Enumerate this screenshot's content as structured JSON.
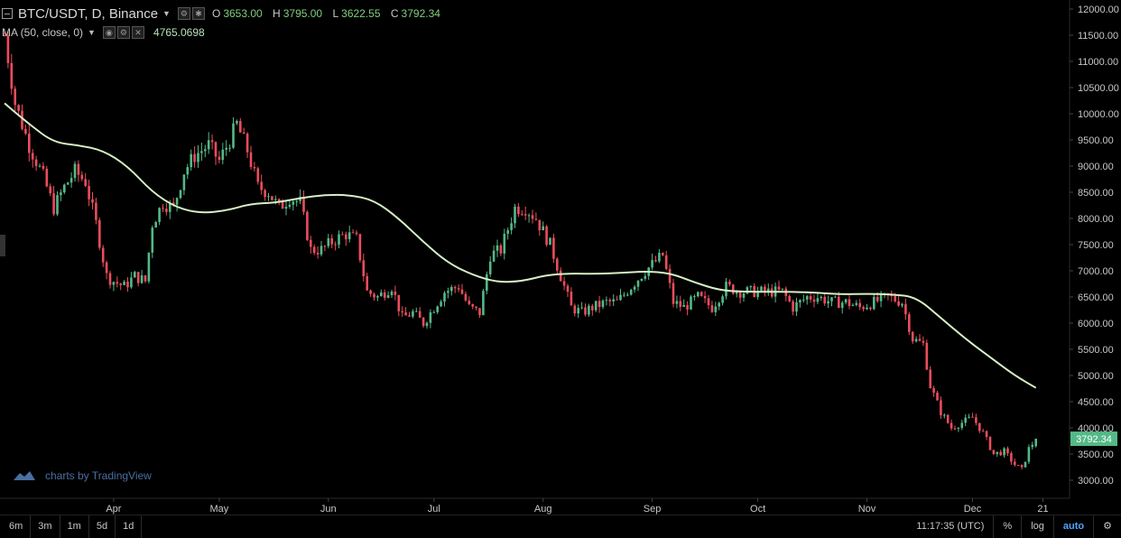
{
  "header": {
    "symbol": "BTC/USDT, D, Binance",
    "ohlc": [
      {
        "k": "O",
        "v": "3653.00"
      },
      {
        "k": "H",
        "v": "3795.00"
      },
      {
        "k": "L",
        "v": "3622.55"
      },
      {
        "k": "C",
        "v": "3792.34"
      }
    ],
    "indicator_label": "MA (50, close, 0)",
    "indicator_value": "4765.0698"
  },
  "watermark": "charts by TradingView",
  "bottom_bar": {
    "ranges": [
      "6m",
      "3m",
      "1m",
      "5d",
      "1d"
    ],
    "time": "11:17:35 (UTC)",
    "percent": "%",
    "log": "log",
    "auto": "auto"
  },
  "colors": {
    "up": "#53b987",
    "down": "#eb4d5c",
    "ma": "#d6f0c4",
    "axis_text": "#c8c8c8",
    "price_tag": "#53b987"
  },
  "chart_data": {
    "type": "candlestick",
    "title": "",
    "x_ticks": [
      "Apr",
      "May",
      "Jun",
      "Jul",
      "Aug",
      "Sep",
      "Oct",
      "Nov",
      "Dec",
      "21"
    ],
    "y_ticks": [
      "3000.00",
      "3500.00",
      "4000.00",
      "4500.00",
      "5000.00",
      "5500.00",
      "6000.00",
      "6500.00",
      "7000.00",
      "7500.00",
      "8000.00",
      "8500.00",
      "9000.00",
      "9500.00",
      "10000.00",
      "10500.00",
      "11000.00",
      "11500.00",
      "12000.00"
    ],
    "ylim": [
      2850,
      12050
    ],
    "last_price": "3792.34",
    "close_path": [
      [
        "2018-03-01",
        11500
      ],
      [
        "2018-03-04",
        10200
      ],
      [
        "2018-03-08",
        9400
      ],
      [
        "2018-03-12",
        8800
      ],
      [
        "2018-03-15",
        8200
      ],
      [
        "2018-03-18",
        8600
      ],
      [
        "2018-03-21",
        8900
      ],
      [
        "2018-03-24",
        8700
      ],
      [
        "2018-03-27",
        7900
      ],
      [
        "2018-03-30",
        6900
      ],
      [
        "2018-04-01",
        6800
      ],
      [
        "2018-04-04",
        6700
      ],
      [
        "2018-04-07",
        6900
      ],
      [
        "2018-04-10",
        6800
      ],
      [
        "2018-04-12",
        7900
      ],
      [
        "2018-04-15",
        8300
      ],
      [
        "2018-04-18",
        8200
      ],
      [
        "2018-04-21",
        8900
      ],
      [
        "2018-04-24",
        9200
      ],
      [
        "2018-04-26",
        9300
      ],
      [
        "2018-04-28",
        9400
      ],
      [
        "2018-05-01",
        9100
      ],
      [
        "2018-05-04",
        9500
      ],
      [
        "2018-05-06",
        9800
      ],
      [
        "2018-05-09",
        9300
      ],
      [
        "2018-05-12",
        8600
      ],
      [
        "2018-05-15",
        8500
      ],
      [
        "2018-05-18",
        8200
      ],
      [
        "2018-05-21",
        8400
      ],
      [
        "2018-05-24",
        8300
      ],
      [
        "2018-05-27",
        7400
      ],
      [
        "2018-05-30",
        7400
      ],
      [
        "2018-06-03",
        7600
      ],
      [
        "2018-06-06",
        7700
      ],
      [
        "2018-06-09",
        7600
      ],
      [
        "2018-06-12",
        6600
      ],
      [
        "2018-06-15",
        6500
      ],
      [
        "2018-06-19",
        6700
      ],
      [
        "2018-06-22",
        6100
      ],
      [
        "2018-06-25",
        6200
      ],
      [
        "2018-06-28",
        6000
      ],
      [
        "2018-07-01",
        6300
      ],
      [
        "2018-07-04",
        6600
      ],
      [
        "2018-07-08",
        6700
      ],
      [
        "2018-07-11",
        6300
      ],
      [
        "2018-07-14",
        6200
      ],
      [
        "2018-07-17",
        7300
      ],
      [
        "2018-07-20",
        7400
      ],
      [
        "2018-07-24",
        8200
      ],
      [
        "2018-07-27",
        8200
      ],
      [
        "2018-07-30",
        8000
      ],
      [
        "2018-08-03",
        7500
      ],
      [
        "2018-08-06",
        6900
      ],
      [
        "2018-08-09",
        6300
      ],
      [
        "2018-08-12",
        6200
      ],
      [
        "2018-08-15",
        6300
      ],
      [
        "2018-08-19",
        6400
      ],
      [
        "2018-08-22",
        6400
      ],
      [
        "2018-08-26",
        6700
      ],
      [
        "2018-08-30",
        7000
      ],
      [
        "2018-09-04",
        7300
      ],
      [
        "2018-09-07",
        6400
      ],
      [
        "2018-09-10",
        6300
      ],
      [
        "2018-09-14",
        6500
      ],
      [
        "2018-09-18",
        6300
      ],
      [
        "2018-09-22",
        6700
      ],
      [
        "2018-09-26",
        6600
      ],
      [
        "2018-09-30",
        6600
      ],
      [
        "2018-10-04",
        6600
      ],
      [
        "2018-10-08",
        6600
      ],
      [
        "2018-10-11",
        6300
      ],
      [
        "2018-10-15",
        6500
      ],
      [
        "2018-10-18",
        6500
      ],
      [
        "2018-10-22",
        6400
      ],
      [
        "2018-10-26",
        6400
      ],
      [
        "2018-10-30",
        6300
      ],
      [
        "2018-11-03",
        6400
      ],
      [
        "2018-11-07",
        6500
      ],
      [
        "2018-11-11",
        6400
      ],
      [
        "2018-11-14",
        5700
      ],
      [
        "2018-11-17",
        5600
      ],
      [
        "2018-11-19",
        4800
      ],
      [
        "2018-11-22",
        4300
      ],
      [
        "2018-11-25",
        4000
      ],
      [
        "2018-11-28",
        4100
      ],
      [
        "2018-12-01",
        4200
      ],
      [
        "2018-12-04",
        3900
      ],
      [
        "2018-12-07",
        3500
      ],
      [
        "2018-12-10",
        3550
      ],
      [
        "2018-12-13",
        3300
      ],
      [
        "2018-12-15",
        3200
      ],
      [
        "2018-12-17",
        3600
      ],
      [
        "2018-12-19",
        3792
      ]
    ],
    "ma_path": [
      [
        "2018-03-01",
        10200
      ],
      [
        "2018-03-08",
        9800
      ],
      [
        "2018-03-15",
        9450
      ],
      [
        "2018-03-22",
        9400
      ],
      [
        "2018-03-29",
        9300
      ],
      [
        "2018-04-05",
        9000
      ],
      [
        "2018-04-12",
        8500
      ],
      [
        "2018-04-19",
        8200
      ],
      [
        "2018-04-26",
        8100
      ],
      [
        "2018-05-03",
        8150
      ],
      [
        "2018-05-10",
        8280
      ],
      [
        "2018-05-17",
        8300
      ],
      [
        "2018-05-24",
        8390
      ],
      [
        "2018-05-31",
        8450
      ],
      [
        "2018-06-07",
        8450
      ],
      [
        "2018-06-14",
        8350
      ],
      [
        "2018-06-21",
        8000
      ],
      [
        "2018-06-28",
        7550
      ],
      [
        "2018-07-05",
        7150
      ],
      [
        "2018-07-12",
        6920
      ],
      [
        "2018-07-19",
        6780
      ],
      [
        "2018-07-26",
        6800
      ],
      [
        "2018-08-02",
        6920
      ],
      [
        "2018-08-09",
        6950
      ],
      [
        "2018-08-16",
        6940
      ],
      [
        "2018-08-23",
        6960
      ],
      [
        "2018-08-30",
        6990
      ],
      [
        "2018-09-06",
        6960
      ],
      [
        "2018-09-13",
        6780
      ],
      [
        "2018-09-20",
        6630
      ],
      [
        "2018-09-27",
        6600
      ],
      [
        "2018-10-04",
        6600
      ],
      [
        "2018-10-11",
        6600
      ],
      [
        "2018-10-18",
        6580
      ],
      [
        "2018-10-25",
        6550
      ],
      [
        "2018-11-01",
        6560
      ],
      [
        "2018-11-08",
        6550
      ],
      [
        "2018-11-15",
        6500
      ],
      [
        "2018-11-22",
        6100
      ],
      [
        "2018-11-29",
        5700
      ],
      [
        "2018-12-06",
        5350
      ],
      [
        "2018-12-13",
        5000
      ],
      [
        "2018-12-19",
        4765
      ]
    ]
  }
}
